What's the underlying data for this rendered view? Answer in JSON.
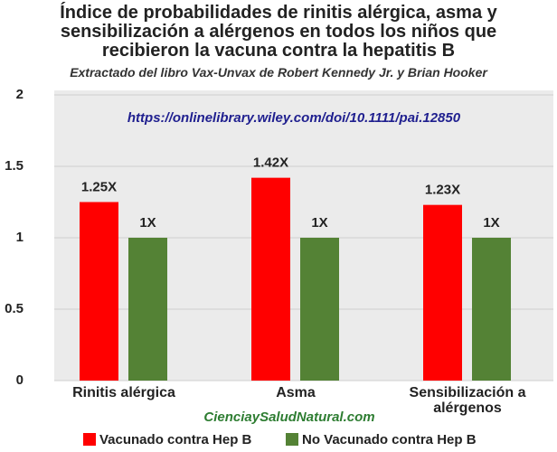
{
  "chart_data": {
    "type": "bar",
    "title": "Índice de probabilidades de rinitis alérgica, asma y sensibilización a alérgenos en todos los niños que recibieron la vacuna contra la hepatitis B",
    "subtitle": "Extractado del libro Vax-Unvax de Robert Kennedy Jr. y Brian Hooker",
    "annotations": [
      "https://onlinelibrary.wiley.com/doi/10.1111/pai.12850",
      "CienciaySaludNatural.com"
    ],
    "categories": [
      "Rinitis alérgica",
      "Asma",
      "Sensibilización a alérgenos"
    ],
    "series": [
      {
        "name": "Vacunado contra Hep B",
        "color": "#ff0000",
        "values": [
          1.25,
          1.42,
          1.23
        ],
        "value_labels": [
          "1.25X",
          "1.42X",
          "1.23X"
        ]
      },
      {
        "name": "No Vacunado contra Hep B",
        "color": "#548235",
        "values": [
          1,
          1,
          1
        ],
        "value_labels": [
          "1X",
          "1X",
          "1X"
        ]
      }
    ],
    "ylim": [
      0,
      2
    ],
    "yticks": [
      0,
      0.5,
      1,
      1.5,
      2
    ],
    "grid": true,
    "legend": "bottom"
  }
}
